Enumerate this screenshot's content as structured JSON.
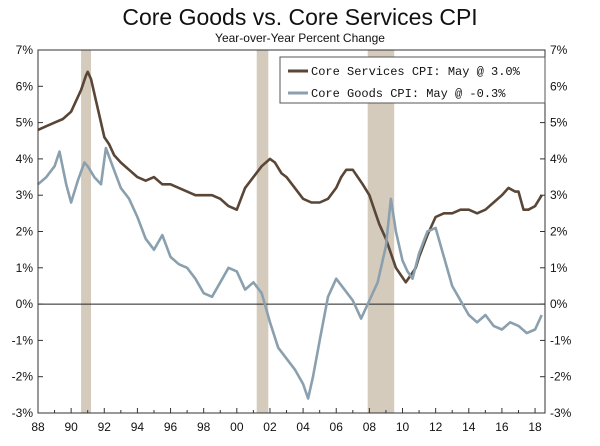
{
  "chart_data": {
    "type": "line",
    "title": "Core Goods vs. Core Services CPI",
    "subtitle": "Year-over-Year Percent Change",
    "ylim": [
      -3,
      7
    ],
    "xlim": [
      1988,
      2018.6
    ],
    "y_ticks": [
      "7%",
      "6%",
      "5%",
      "4%",
      "3%",
      "2%",
      "1%",
      "0%",
      "-1%",
      "-2%",
      "-3%"
    ],
    "y_tick_values": [
      7,
      6,
      5,
      4,
      3,
      2,
      1,
      0,
      -1,
      -2,
      -3
    ],
    "x_ticks": [
      "88",
      "90",
      "92",
      "94",
      "96",
      "98",
      "00",
      "02",
      "04",
      "06",
      "08",
      "10",
      "12",
      "14",
      "16",
      "18"
    ],
    "x_tick_values": [
      1988,
      1990,
      1992,
      1994,
      1996,
      1998,
      2000,
      2002,
      2004,
      2006,
      2008,
      2010,
      2012,
      2014,
      2016,
      2018
    ],
    "recessions": [
      [
        1990.6,
        1991.2
      ],
      [
        2001.2,
        2001.9
      ],
      [
        2007.9,
        2009.5
      ]
    ],
    "legend_position": "top-right",
    "series": [
      {
        "name": "Core Services CPI: May @ 3.0%",
        "color": "#5a4636",
        "x": [
          1988.0,
          1988.5,
          1989.0,
          1989.5,
          1990.0,
          1990.3,
          1990.6,
          1990.9,
          1991.0,
          1991.2,
          1991.5,
          1991.8,
          1992.0,
          1992.3,
          1992.6,
          1993.0,
          1993.5,
          1994.0,
          1994.5,
          1995.0,
          1995.5,
          1996.0,
          1996.5,
          1997.0,
          1997.5,
          1998.0,
          1998.5,
          1999.0,
          1999.5,
          2000.0,
          2000.5,
          2001.0,
          2001.5,
          2002.0,
          2002.3,
          2002.7,
          2003.0,
          2003.5,
          2004.0,
          2004.5,
          2005.0,
          2005.5,
          2006.0,
          2006.3,
          2006.6,
          2007.0,
          2007.3,
          2007.6,
          2008.0,
          2008.3,
          2008.6,
          2009.0,
          2009.3,
          2009.6,
          2009.9,
          2010.2,
          2010.5,
          2010.8,
          2011.0,
          2011.5,
          2012.0,
          2012.5,
          2013.0,
          2013.5,
          2014.0,
          2014.5,
          2015.0,
          2015.5,
          2016.0,
          2016.4,
          2016.8,
          2017.0,
          2017.3,
          2017.6,
          2018.0,
          2018.4
        ],
        "y": [
          4.8,
          4.9,
          5.0,
          5.1,
          5.3,
          5.6,
          5.9,
          6.3,
          6.4,
          6.2,
          5.6,
          5.0,
          4.6,
          4.4,
          4.1,
          3.9,
          3.7,
          3.5,
          3.4,
          3.5,
          3.3,
          3.3,
          3.2,
          3.1,
          3.0,
          3.0,
          3.0,
          2.9,
          2.7,
          2.6,
          3.2,
          3.5,
          3.8,
          4.0,
          3.9,
          3.6,
          3.5,
          3.2,
          2.9,
          2.8,
          2.8,
          2.9,
          3.2,
          3.5,
          3.7,
          3.7,
          3.5,
          3.3,
          3.0,
          2.6,
          2.2,
          1.8,
          1.4,
          1.0,
          0.8,
          0.6,
          0.8,
          1.0,
          1.3,
          1.9,
          2.4,
          2.5,
          2.5,
          2.6,
          2.6,
          2.5,
          2.6,
          2.8,
          3.0,
          3.2,
          3.1,
          3.1,
          2.6,
          2.6,
          2.7,
          3.0
        ]
      },
      {
        "name": "Core Goods CPI: May @ -0.3%",
        "color": "#8aa0ae",
        "x": [
          1988.0,
          1988.5,
          1989.0,
          1989.3,
          1989.7,
          1990.0,
          1990.4,
          1990.8,
          1991.0,
          1991.4,
          1991.8,
          1992.1,
          1992.5,
          1993.0,
          1993.5,
          1994.0,
          1994.5,
          1995.0,
          1995.5,
          1996.0,
          1996.5,
          1997.0,
          1997.5,
          1998.0,
          1998.5,
          1999.0,
          1999.5,
          2000.0,
          2000.5,
          2001.0,
          2001.5,
          2002.0,
          2002.5,
          2003.0,
          2003.5,
          2004.0,
          2004.3,
          2004.6,
          2005.0,
          2005.5,
          2006.0,
          2006.5,
          2007.0,
          2007.5,
          2008.0,
          2008.5,
          2009.0,
          2009.3,
          2009.6,
          2010.0,
          2010.3,
          2010.6,
          2011.0,
          2011.5,
          2012.0,
          2012.5,
          2013.0,
          2013.5,
          2014.0,
          2014.5,
          2015.0,
          2015.5,
          2016.0,
          2016.5,
          2017.0,
          2017.5,
          2018.0,
          2018.4
        ],
        "y": [
          3.3,
          3.5,
          3.8,
          4.2,
          3.3,
          2.8,
          3.4,
          3.9,
          3.8,
          3.5,
          3.3,
          4.3,
          3.8,
          3.2,
          2.9,
          2.4,
          1.8,
          1.5,
          1.9,
          1.3,
          1.1,
          1.0,
          0.7,
          0.3,
          0.2,
          0.6,
          1.0,
          0.9,
          0.4,
          0.6,
          0.3,
          -0.5,
          -1.2,
          -1.5,
          -1.8,
          -2.2,
          -2.6,
          -2.0,
          -1.0,
          0.2,
          0.7,
          0.4,
          0.1,
          -0.4,
          0.1,
          0.6,
          1.6,
          2.9,
          2.0,
          1.2,
          0.9,
          0.7,
          1.4,
          2.0,
          2.1,
          1.3,
          0.5,
          0.1,
          -0.3,
          -0.5,
          -0.3,
          -0.6,
          -0.7,
          -0.5,
          -0.6,
          -0.8,
          -0.7,
          -0.3
        ]
      }
    ]
  }
}
